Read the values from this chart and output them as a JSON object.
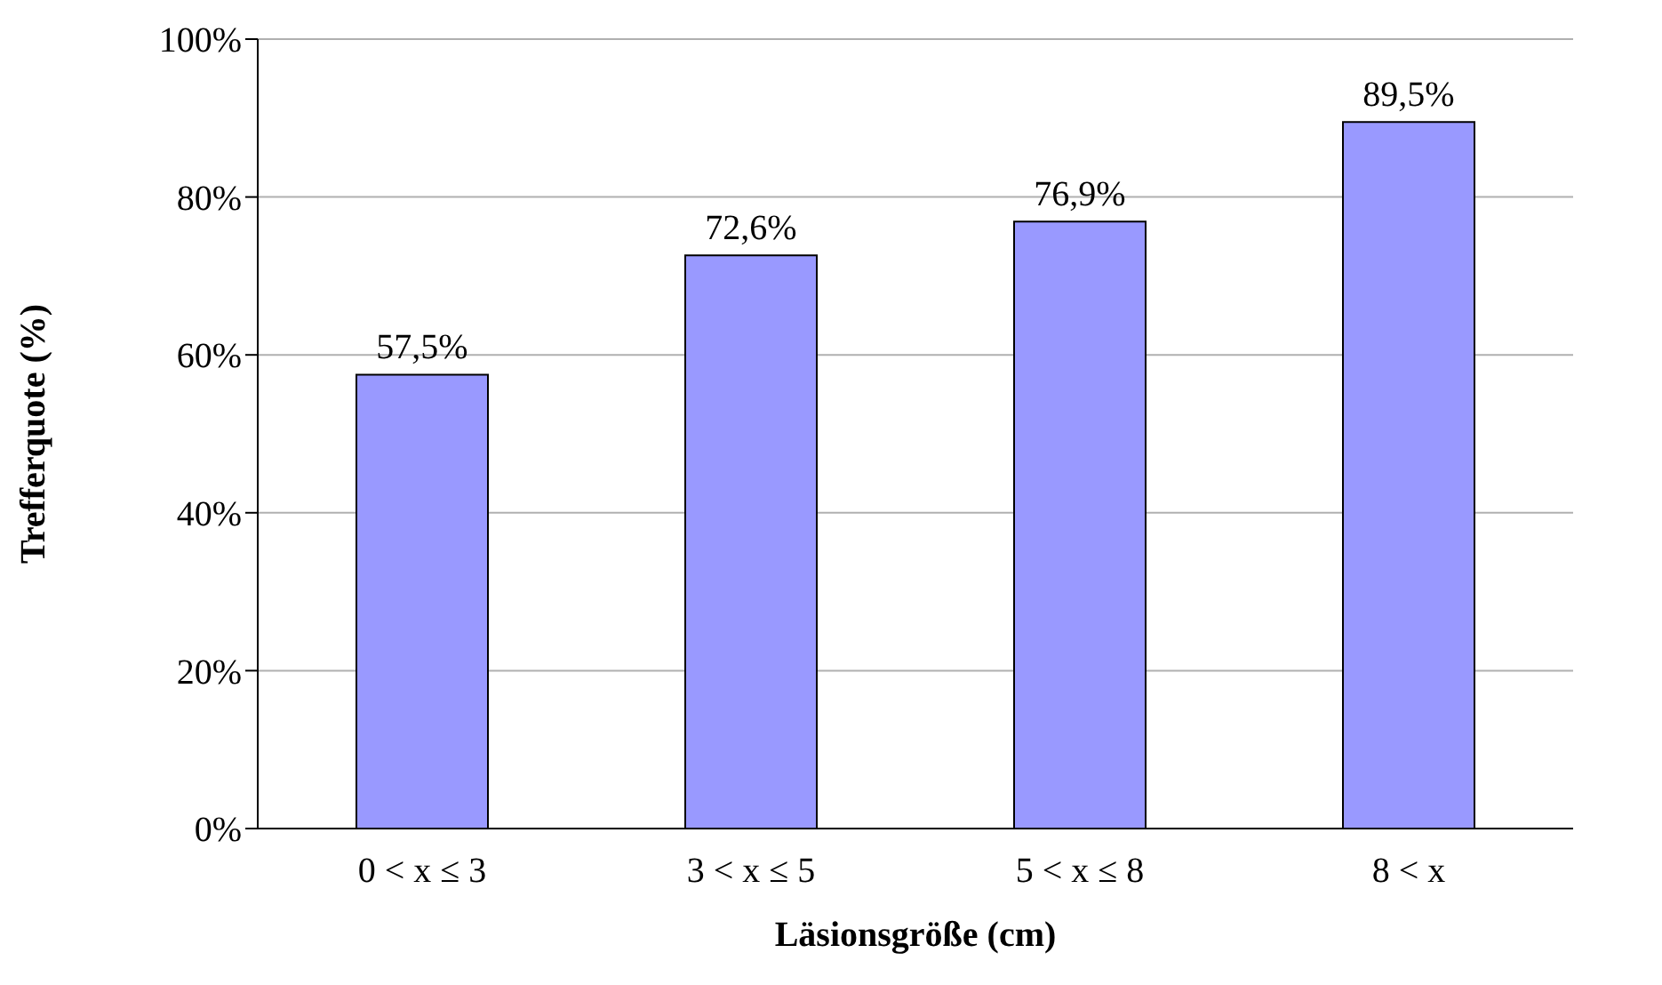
{
  "chart_data": {
    "type": "bar",
    "xlabel": "Läsionsgröße (cm)",
    "ylabel": "Trefferquote (%)",
    "categories": [
      "0 < x ≤ 3",
      "3 < x ≤ 5",
      "5 < x ≤ 8",
      "8 < x"
    ],
    "values": [
      57.5,
      72.6,
      76.9,
      89.5
    ],
    "value_labels": [
      "57,5%",
      "72,6%",
      "76,9%",
      "89,5%"
    ],
    "color": "#9999ff",
    "ylim": [
      0,
      100
    ],
    "yticks": [
      {
        "value": 0,
        "label": "0%"
      },
      {
        "value": 20,
        "label": "20%"
      },
      {
        "value": 40,
        "label": "40%"
      },
      {
        "value": 60,
        "label": "60%"
      },
      {
        "value": 80,
        "label": "80%"
      },
      {
        "value": 100,
        "label": "100%"
      }
    ],
    "grid": "y",
    "legend": false
  }
}
